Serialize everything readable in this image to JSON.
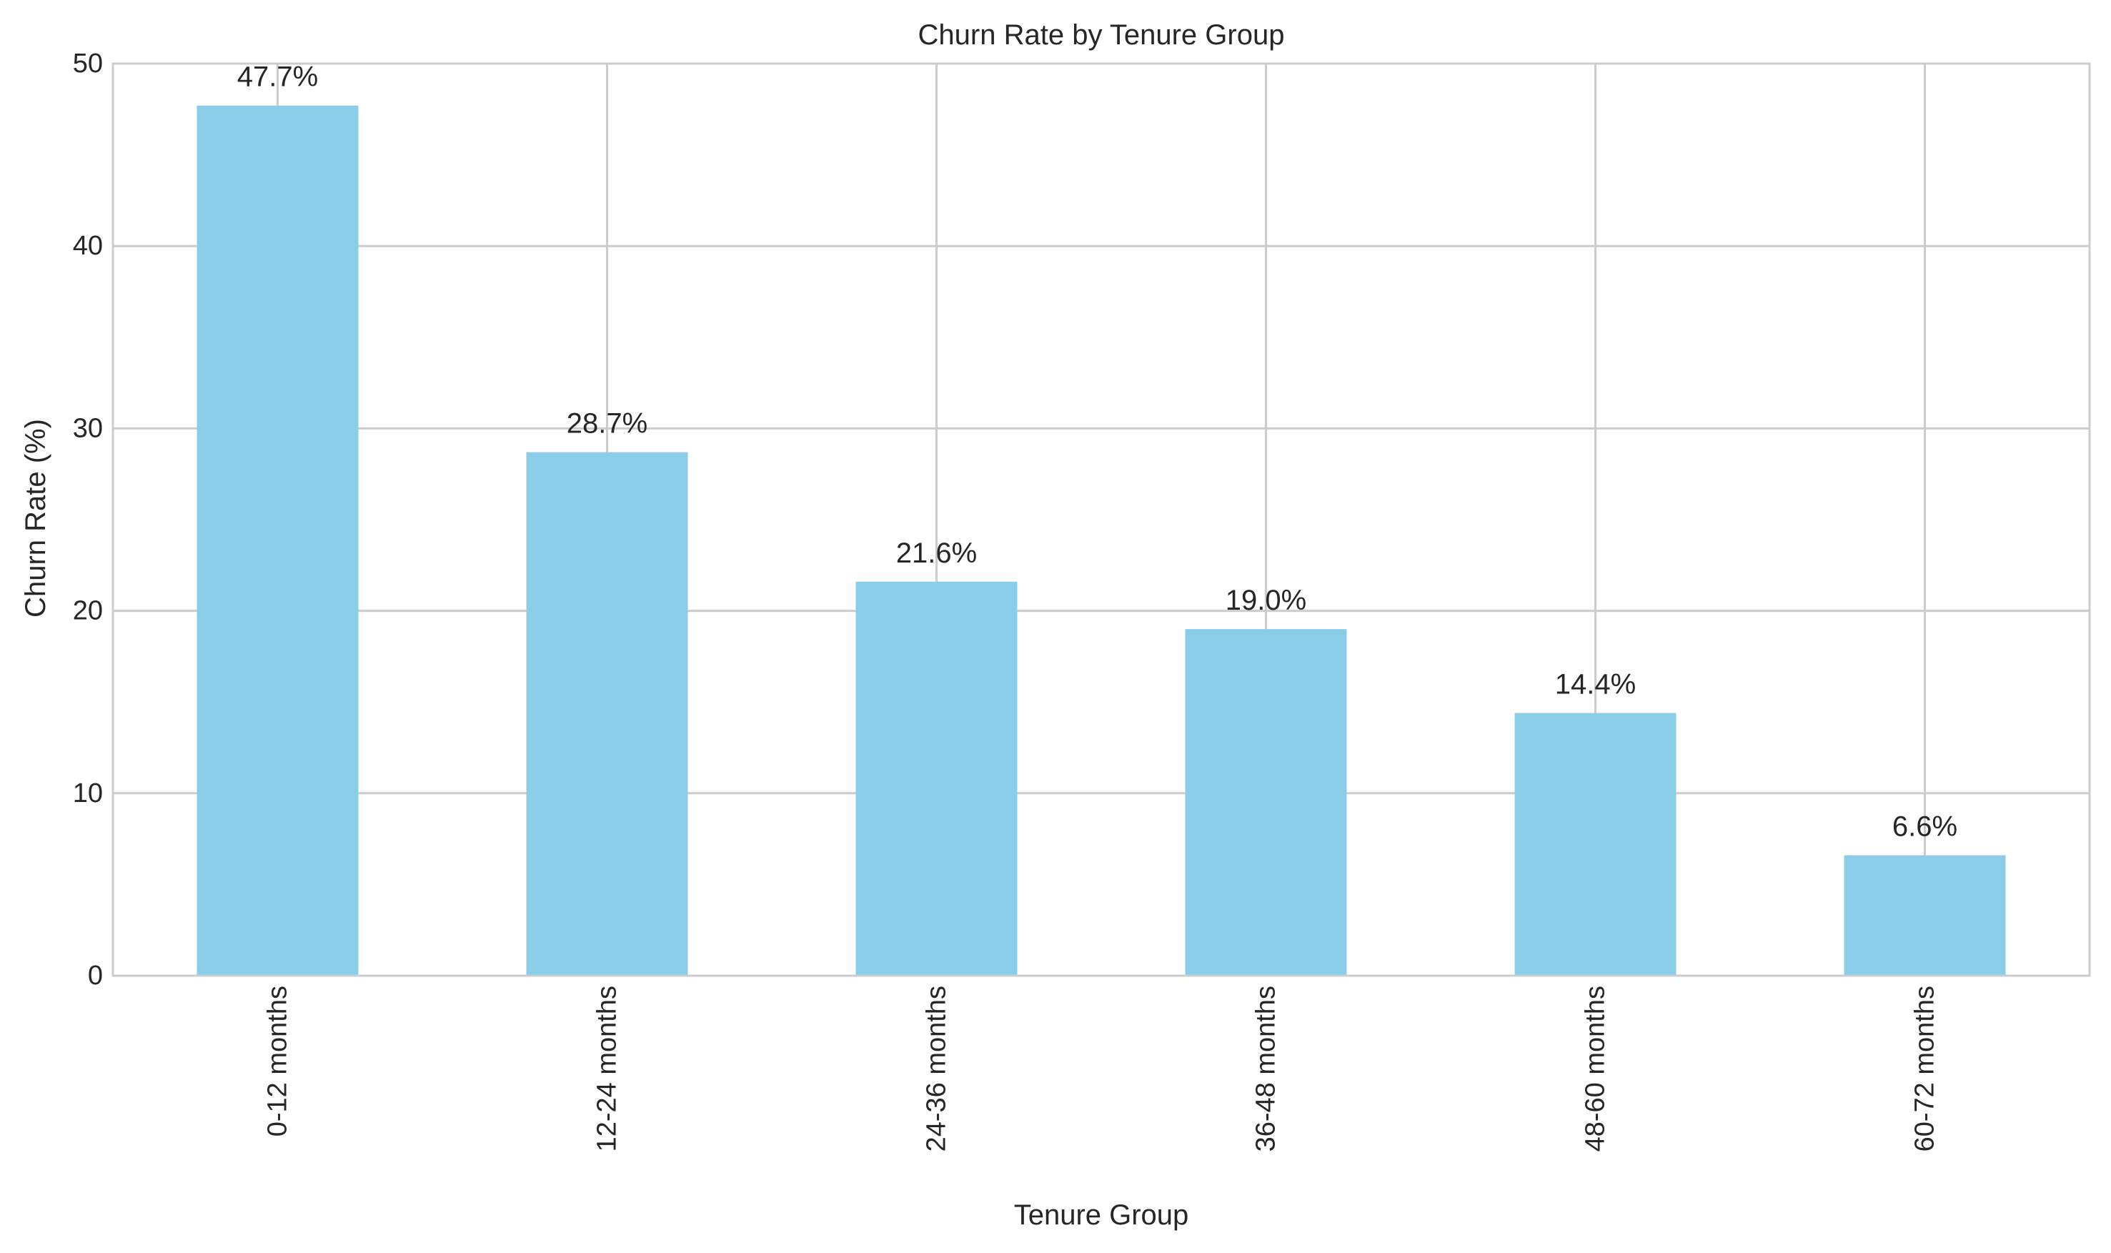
{
  "chart_data": {
    "type": "bar",
    "title": "Churn Rate by Tenure Group",
    "xlabel": "Tenure Group",
    "ylabel": "Churn Rate (%)",
    "categories": [
      "0-12 months",
      "12-24 months",
      "24-36 months",
      "36-48 months",
      "48-60 months",
      "60-72 months"
    ],
    "values": [
      47.7,
      28.7,
      21.6,
      19.0,
      14.4,
      6.6
    ],
    "data_labels": [
      "47.7%",
      "28.7%",
      "21.6%",
      "19.0%",
      "14.4%",
      "6.6%"
    ],
    "ylim": [
      0,
      50
    ],
    "yticks": [
      0,
      10,
      20,
      30,
      40,
      50
    ],
    "grid": true,
    "legend": "none",
    "bar_color": "#89CDE8",
    "grid_color": "#CCCCCC",
    "spine_color": "#CCCCCC"
  }
}
